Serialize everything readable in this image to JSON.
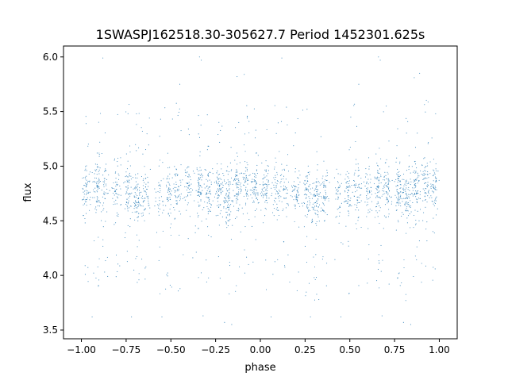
{
  "chart_data": {
    "type": "scatter",
    "title": "1SWASPJ162518.30-305627.7 Period 1452301.625s",
    "xlabel": "phase",
    "ylabel": "flux",
    "xlim": [
      -1.1,
      1.1
    ],
    "ylim": [
      3.42,
      6.1
    ],
    "xticks": [
      -1.0,
      -0.75,
      -0.5,
      -0.25,
      0.0,
      0.25,
      0.5,
      0.75,
      1.0
    ],
    "xtick_labels": [
      "−1.00",
      "−0.75",
      "−0.50",
      "−0.25",
      "0.00",
      "0.25",
      "0.50",
      "0.75",
      "1.00"
    ],
    "yticks": [
      3.5,
      4.0,
      4.5,
      5.0,
      5.5,
      6.0
    ],
    "ytick_labels": [
      "3.5",
      "4.0",
      "4.5",
      "5.0",
      "5.5",
      "6.0"
    ],
    "grid": false,
    "marker_color": "#1f77b4",
    "series": [
      {
        "clusters": [
          {
            "x": -0.97,
            "y": 4.8,
            "n": 70
          },
          {
            "x": -0.91,
            "y": 4.82,
            "n": 80
          },
          {
            "x": -0.87,
            "y": 4.78,
            "n": 50
          },
          {
            "x": -0.8,
            "y": 4.76,
            "n": 60
          },
          {
            "x": -0.74,
            "y": 4.78,
            "n": 70
          },
          {
            "x": -0.69,
            "y": 4.7,
            "n": 90
          },
          {
            "x": -0.64,
            "y": 4.72,
            "n": 60
          },
          {
            "x": -0.56,
            "y": 4.74,
            "n": 40
          },
          {
            "x": -0.51,
            "y": 4.76,
            "n": 60
          },
          {
            "x": -0.46,
            "y": 4.78,
            "n": 60
          },
          {
            "x": -0.4,
            "y": 4.8,
            "n": 50
          },
          {
            "x": -0.34,
            "y": 4.8,
            "n": 80
          },
          {
            "x": -0.29,
            "y": 4.78,
            "n": 70
          },
          {
            "x": -0.23,
            "y": 4.78,
            "n": 80
          },
          {
            "x": -0.18,
            "y": 4.72,
            "n": 90
          },
          {
            "x": -0.13,
            "y": 4.8,
            "n": 80
          },
          {
            "x": -0.08,
            "y": 4.82,
            "n": 70
          },
          {
            "x": -0.03,
            "y": 4.8,
            "n": 70
          },
          {
            "x": 0.03,
            "y": 4.8,
            "n": 70
          },
          {
            "x": 0.09,
            "y": 4.78,
            "n": 60
          },
          {
            "x": 0.14,
            "y": 4.78,
            "n": 50
          },
          {
            "x": 0.2,
            "y": 4.76,
            "n": 60
          },
          {
            "x": 0.26,
            "y": 4.76,
            "n": 70
          },
          {
            "x": 0.31,
            "y": 4.68,
            "n": 90
          },
          {
            "x": 0.36,
            "y": 4.72,
            "n": 60
          },
          {
            "x": 0.44,
            "y": 4.74,
            "n": 40
          },
          {
            "x": 0.49,
            "y": 4.76,
            "n": 60
          },
          {
            "x": 0.54,
            "y": 4.78,
            "n": 60
          },
          {
            "x": 0.6,
            "y": 4.8,
            "n": 50
          },
          {
            "x": 0.66,
            "y": 4.8,
            "n": 80
          },
          {
            "x": 0.71,
            "y": 4.78,
            "n": 70
          },
          {
            "x": 0.77,
            "y": 4.78,
            "n": 80
          },
          {
            "x": 0.82,
            "y": 4.72,
            "n": 90
          },
          {
            "x": 0.87,
            "y": 4.8,
            "n": 80
          },
          {
            "x": 0.92,
            "y": 4.82,
            "n": 70
          },
          {
            "x": 0.97,
            "y": 4.8,
            "n": 70
          }
        ],
        "outliers": [
          {
            "x": -0.88,
            "y": 5.99
          },
          {
            "x": -0.34,
            "y": 6.0
          },
          {
            "x": -0.33,
            "y": 5.97
          },
          {
            "x": 0.12,
            "y": 5.99
          },
          {
            "x": 0.66,
            "y": 6.0
          },
          {
            "x": 0.67,
            "y": 5.97
          },
          {
            "x": -0.09,
            "y": 5.84
          },
          {
            "x": 0.89,
            "y": 5.85
          },
          {
            "x": -0.13,
            "y": 5.82
          },
          {
            "x": 0.86,
            "y": 5.81
          },
          {
            "x": -0.2,
            "y": 3.57
          },
          {
            "x": -0.16,
            "y": 3.55
          },
          {
            "x": 0.8,
            "y": 3.57
          },
          {
            "x": 0.84,
            "y": 3.55
          },
          {
            "x": -0.94,
            "y": 3.62
          },
          {
            "x": 0.06,
            "y": 3.62
          },
          {
            "x": -0.32,
            "y": 3.63
          },
          {
            "x": 0.68,
            "y": 3.63
          },
          {
            "x": -0.45,
            "y": 5.75
          },
          {
            "x": 0.55,
            "y": 5.75
          },
          {
            "x": -0.72,
            "y": 3.62
          },
          {
            "x": 0.28,
            "y": 3.62
          },
          {
            "x": -0.55,
            "y": 3.62
          },
          {
            "x": 0.45,
            "y": 3.62
          }
        ]
      }
    ]
  }
}
